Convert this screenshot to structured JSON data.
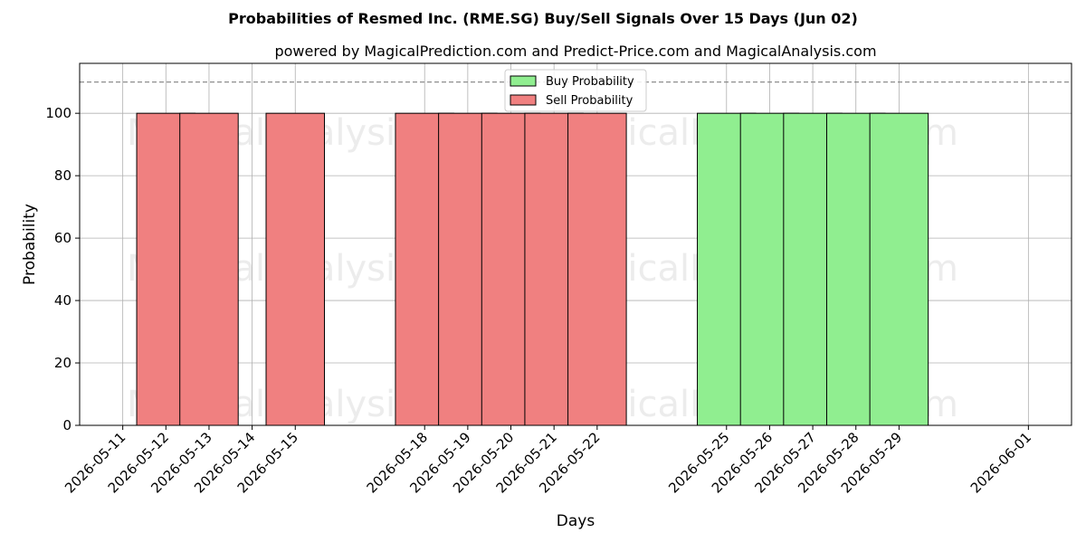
{
  "chart_data": {
    "type": "bar",
    "title": "Probabilities of Resmed Inc. (RME.SG) Buy/Sell Signals Over 15 Days (Jun 02)",
    "subtitle": "powered by MagicalPrediction.com and Predict-Price.com and MagicalAnalysis.com",
    "xlabel": "Days",
    "ylabel": "Probability",
    "ylim": [
      0,
      116
    ],
    "yticks": [
      0,
      20,
      40,
      60,
      80,
      100
    ],
    "reference_line": 110,
    "grid": true,
    "legend_position": "top-center",
    "xlim": [
      "2026-05-10",
      "2026-06-02"
    ],
    "x_tick_labels": [
      "2026-05-11",
      "2026-05-12",
      "2026-05-13",
      "2026-05-14",
      "2026-05-15",
      "2026-05-18",
      "2026-05-19",
      "2026-05-20",
      "2026-05-21",
      "2026-05-22",
      "2026-05-25",
      "2026-05-26",
      "2026-05-27",
      "2026-05-28",
      "2026-05-29",
      "2026-06-01"
    ],
    "categories": [
      "2026-05-12",
      "2026-05-13",
      "2026-05-15",
      "2026-05-18",
      "2026-05-19",
      "2026-05-20",
      "2026-05-21",
      "2026-05-22",
      "2026-05-25",
      "2026-05-26",
      "2026-05-27",
      "2026-05-28",
      "2026-05-29"
    ],
    "series": [
      {
        "name": "Buy Probability",
        "color": "#90ee90",
        "values": [
          0,
          0,
          0,
          0,
          0,
          0,
          0,
          0,
          100,
          100,
          100,
          100,
          100
        ]
      },
      {
        "name": "Sell Probability",
        "color": "#f08080",
        "values": [
          100,
          100,
          100,
          100,
          100,
          100,
          100,
          100,
          0,
          0,
          0,
          0,
          0
        ]
      }
    ],
    "watermarks": [
      "MagicalAnalysis.com",
      "MagicalPrediction.com"
    ]
  }
}
